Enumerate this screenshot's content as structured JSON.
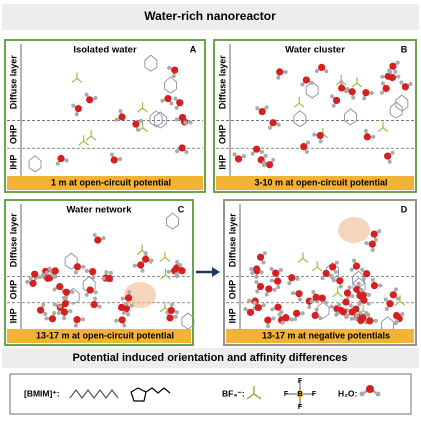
{
  "header": {
    "title": "Water-rich nanoreactor"
  },
  "panels": [
    {
      "letter": "A",
      "title": "Isolated water",
      "layers": [
        "Diffuse layer",
        "OHP",
        "IHP"
      ],
      "footer": "1 m at open-circuit potential"
    },
    {
      "letter": "B",
      "title": "Water cluster",
      "layers": [
        "Diffuse layer",
        "OHP",
        "IHP"
      ],
      "footer": "3-10 m at open-circuit potential"
    },
    {
      "letter": "C",
      "title": "Water network",
      "layers": [
        "Diffuse layer",
        "OHP",
        "IHP"
      ],
      "footer": "13-17 m at open-circuit potential"
    },
    {
      "letter": "D",
      "layers": [
        "Diffuse layer",
        "OHP",
        "IHP"
      ],
      "footer": "13-17 m at negative potentials"
    }
  ],
  "subtitle": "Potential induced orientation and affinity differences",
  "legend": {
    "bmim": "[BMIM]⁺:",
    "bf4": "BF₄⁻:",
    "bf4_atoms": [
      "F",
      "F",
      "F",
      "F",
      "B"
    ],
    "h2o": "H₂O:"
  }
}
